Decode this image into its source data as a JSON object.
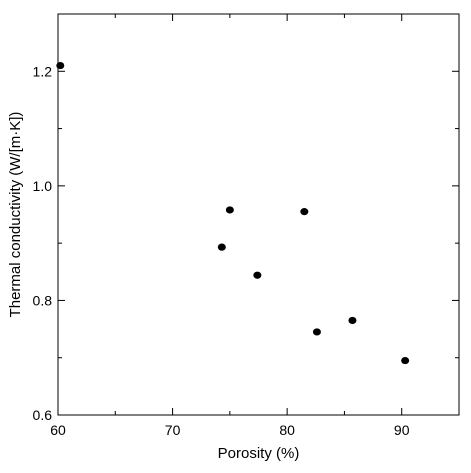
{
  "chart_data": {
    "type": "scatter",
    "title": "",
    "xlabel": "Porosity (%)",
    "ylabel": "Thermal conductivity (W/[m·K])",
    "xlim": [
      60,
      95
    ],
    "ylim": [
      0.6,
      1.3
    ],
    "x_major_ticks": [
      60,
      70,
      80,
      90
    ],
    "x_minor_ticks": [
      65,
      75,
      85
    ],
    "y_major_ticks": [
      0.6,
      0.8,
      1.0,
      1.2
    ],
    "y_minor_ticks": [
      0.7,
      0.9,
      1.1
    ],
    "x_tick_labels": [
      "60",
      "70",
      "80",
      "90"
    ],
    "y_tick_labels": [
      "0.6",
      "0.8",
      "1.0",
      "1.2"
    ],
    "grid": false,
    "marker_color": "#000000",
    "points": [
      {
        "x": 60.2,
        "y": 1.21
      },
      {
        "x": 74.3,
        "y": 0.893
      },
      {
        "x": 75.0,
        "y": 0.958
      },
      {
        "x": 77.4,
        "y": 0.844
      },
      {
        "x": 81.5,
        "y": 0.955
      },
      {
        "x": 82.6,
        "y": 0.745
      },
      {
        "x": 85.7,
        "y": 0.765
      },
      {
        "x": 90.3,
        "y": 0.695
      }
    ]
  }
}
